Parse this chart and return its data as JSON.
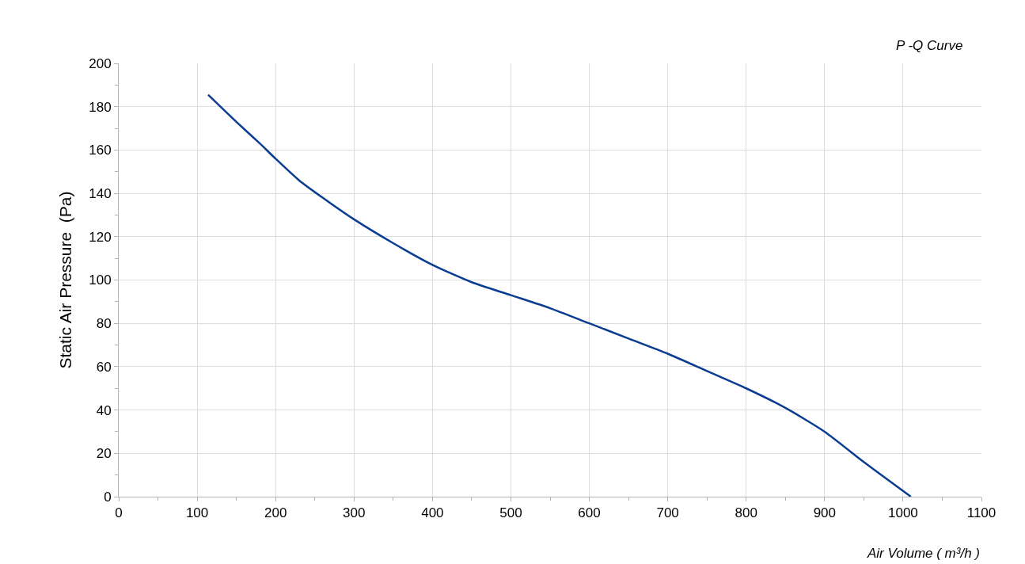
{
  "chart_data": {
    "type": "line",
    "title": "P -Q Curve",
    "xlabel": "Air Volume ( m³/h )",
    "ylabel": "Static Air Pressure  (Pa)",
    "series": [
      {
        "color": "#0a3d91",
        "x": [
          114,
          150,
          180,
          200,
          230,
          260,
          300,
          350,
          400,
          450,
          500,
          550,
          600,
          650,
          700,
          750,
          800,
          850,
          900,
          950,
          1010
        ],
        "values": [
          185.5,
          173,
          163,
          156,
          146,
          138,
          128,
          117,
          107,
          99,
          93,
          87,
          80,
          73,
          66,
          58,
          50,
          41,
          30,
          16,
          0
        ]
      }
    ],
    "xlim": [
      0,
      1100
    ],
    "xticks": [
      0,
      100,
      200,
      300,
      400,
      500,
      600,
      700,
      800,
      900,
      1000,
      1100
    ],
    "ylim": [
      0,
      200
    ],
    "yticks": [
      0,
      20,
      40,
      60,
      80,
      100,
      120,
      140,
      160,
      180,
      200
    ],
    "grid": true,
    "marker": "none",
    "line_style": "solid"
  }
}
